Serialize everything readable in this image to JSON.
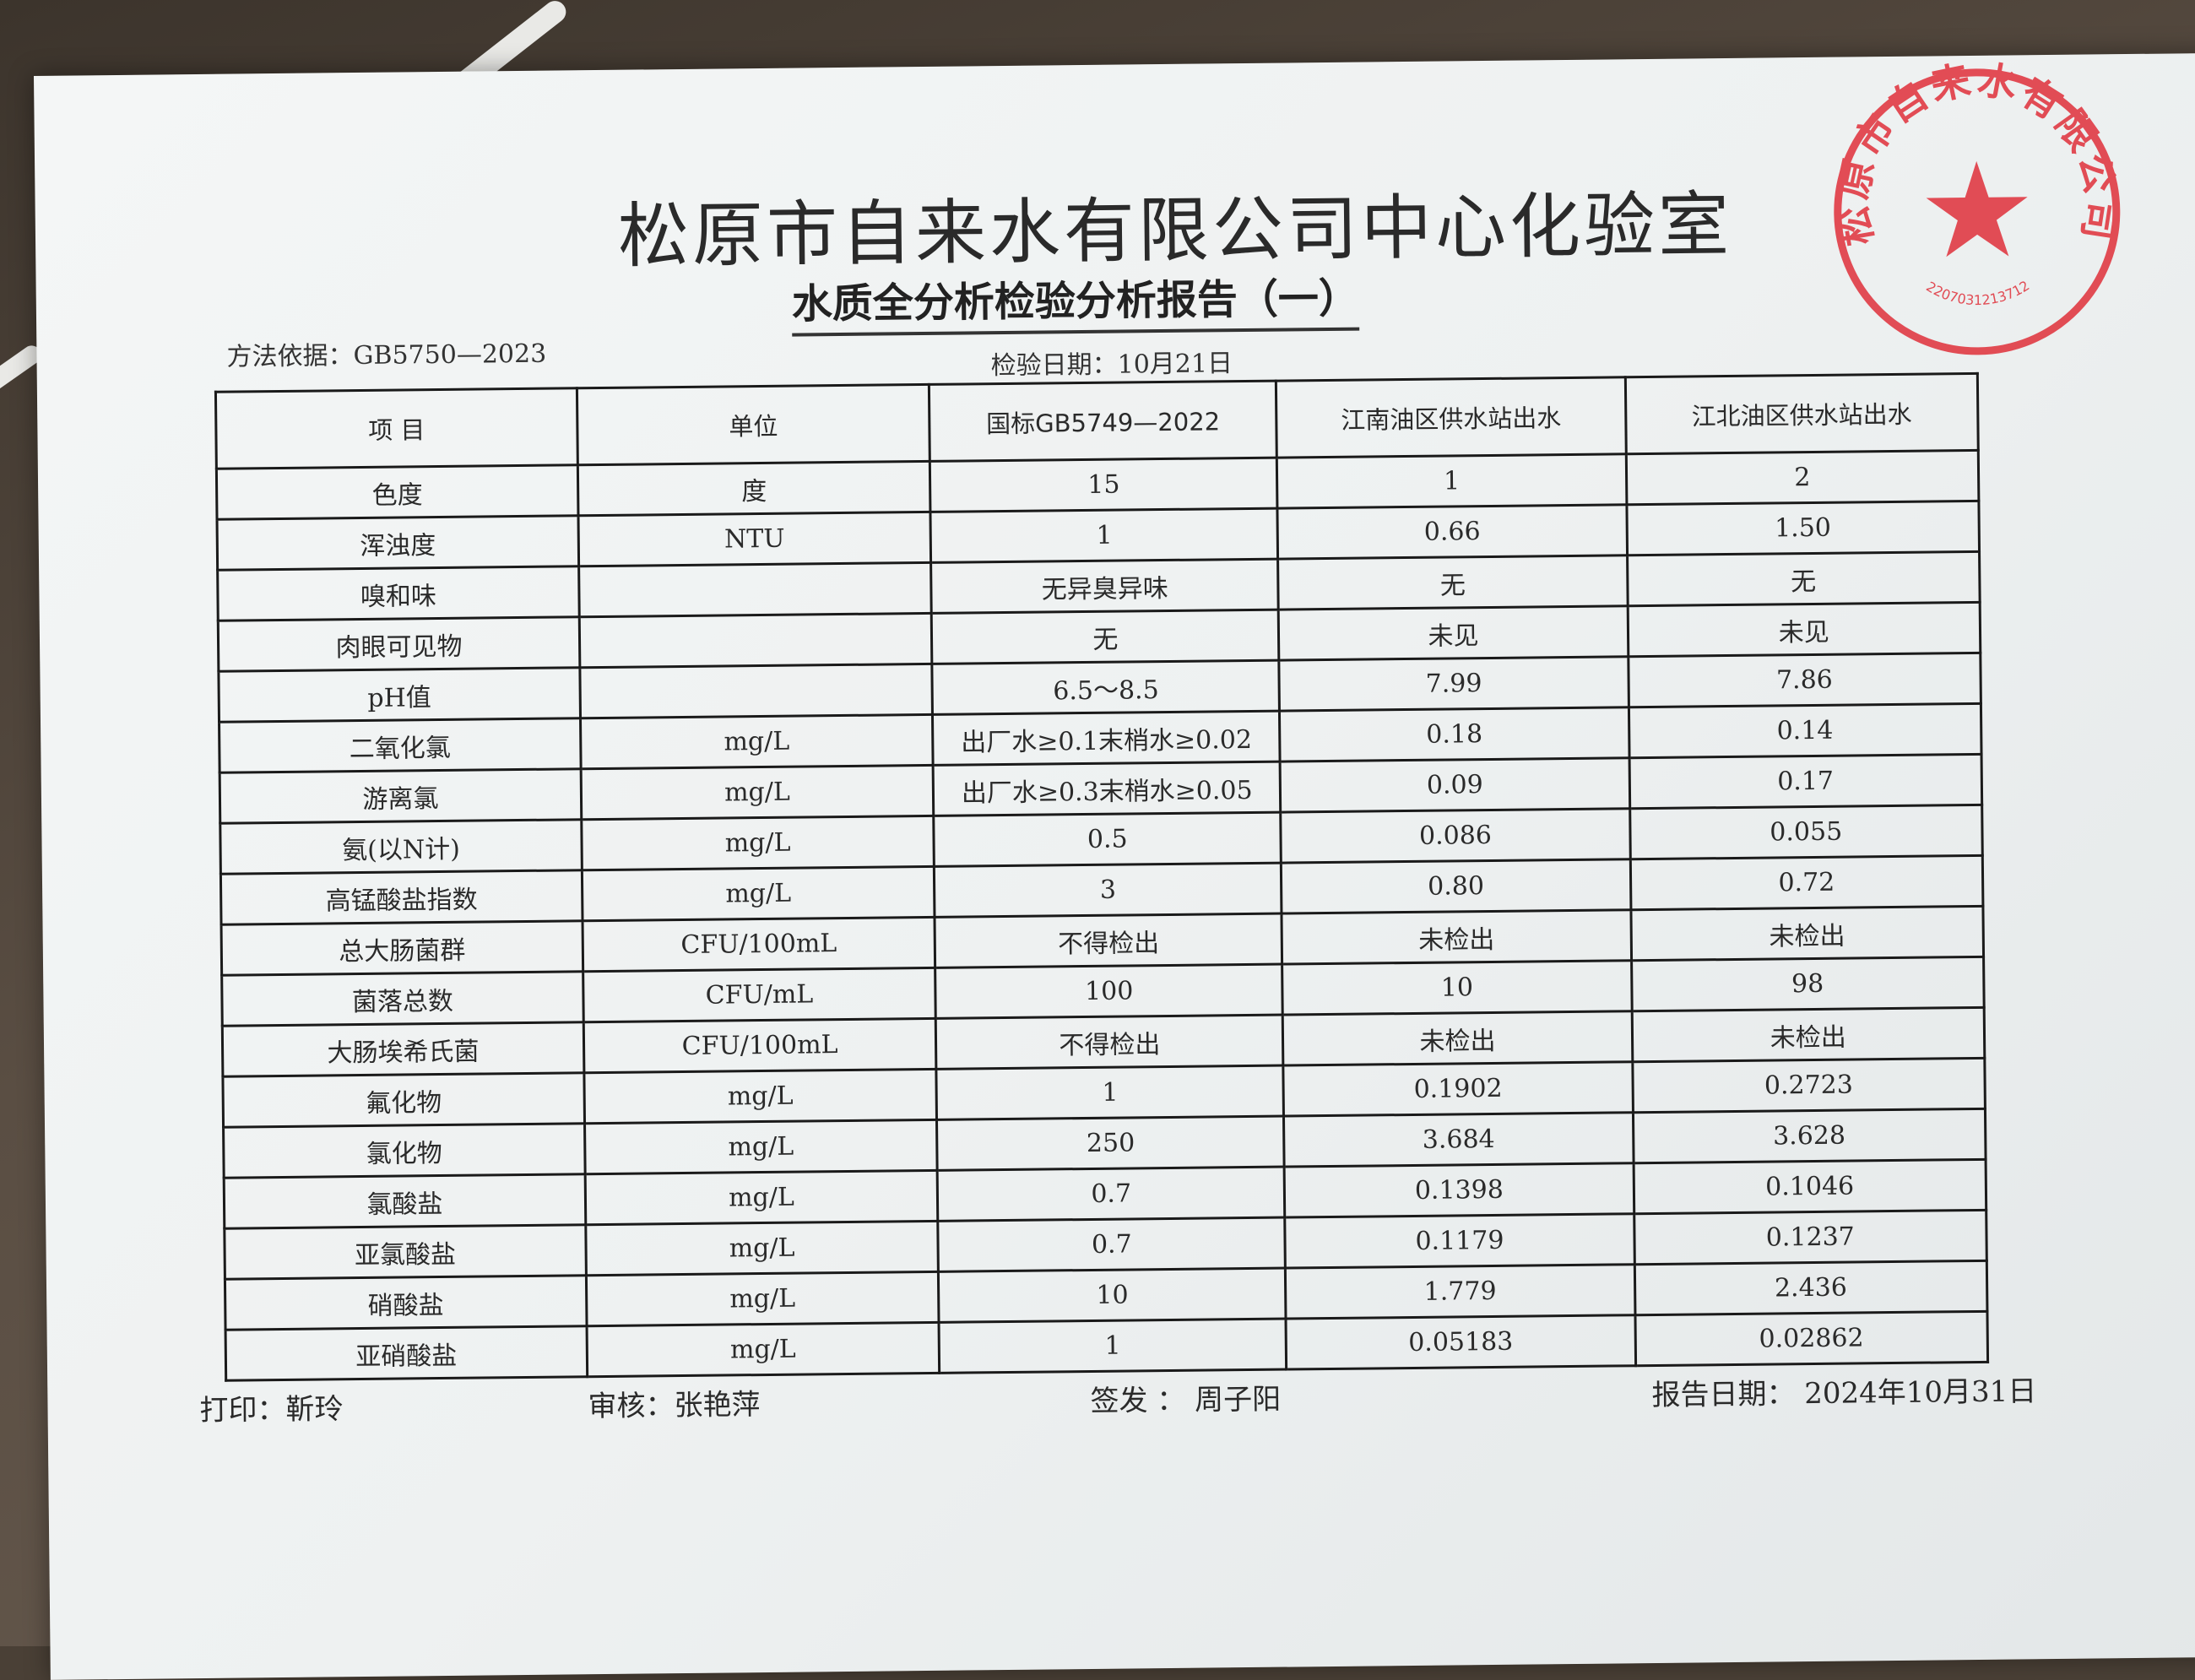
{
  "document": {
    "title": "松原市自来水有限公司中心化验室",
    "subtitle": "水质全分析检验分析报告（一）",
    "method_basis": "方法依据：GB5750—2023",
    "inspection_date": "检验日期：10月21日",
    "table": {
      "headers": [
        "项 目",
        "单位",
        "国标GB5749—2022",
        "江南油区供水站出水",
        "江北油区供水站出水"
      ],
      "rows": [
        [
          "色度",
          "度",
          "15",
          "1",
          "2"
        ],
        [
          "浑浊度",
          "NTU",
          "1",
          "0.66",
          "1.50"
        ],
        [
          "嗅和味",
          "",
          "无异臭异味",
          "无",
          "无"
        ],
        [
          "肉眼可见物",
          "",
          "无",
          "未见",
          "未见"
        ],
        [
          "pH值",
          "",
          "6.5～8.5",
          "7.99",
          "7.86"
        ],
        [
          "二氧化氯",
          "mg/L",
          "出厂水≥0.1末梢水≥0.02",
          "0.18",
          "0.14"
        ],
        [
          "游离氯",
          "mg/L",
          "出厂水≥0.3末梢水≥0.05",
          "0.09",
          "0.17"
        ],
        [
          "氨(以N计)",
          "mg/L",
          "0.5",
          "0.086",
          "0.055"
        ],
        [
          "高锰酸盐指数",
          "mg/L",
          "3",
          "0.80",
          "0.72"
        ],
        [
          "总大肠菌群",
          "CFU/100mL",
          "不得检出",
          "未检出",
          "未检出"
        ],
        [
          "菌落总数",
          "CFU/mL",
          "100",
          "10",
          "98"
        ],
        [
          "大肠埃希氏菌",
          "CFU/100mL",
          "不得检出",
          "未检出",
          "未检出"
        ],
        [
          "氟化物",
          "mg/L",
          "1",
          "0.1902",
          "0.2723"
        ],
        [
          "氯化物",
          "mg/L",
          "250",
          "3.684",
          "3.628"
        ],
        [
          "氯酸盐",
          "mg/L",
          "0.7",
          "0.1398",
          "0.1046"
        ],
        [
          "亚氯酸盐",
          "mg/L",
          "0.7",
          "0.1179",
          "0.1237"
        ],
        [
          "硝酸盐",
          "mg/L",
          "10",
          "1.779",
          "2.436"
        ],
        [
          "亚硝酸盐",
          "mg/L",
          "1",
          "0.05183",
          "0.02862"
        ]
      ]
    },
    "footer": {
      "print": "打印：靳玲",
      "review": "审核：张艳萍",
      "issue": "签发 ：  周子阳",
      "report_date": "报告日期：  2024年10月31日"
    },
    "stamp": {
      "text": "松原市自来水有限公司",
      "number": "2207031213712",
      "color": "#e0303a"
    }
  }
}
